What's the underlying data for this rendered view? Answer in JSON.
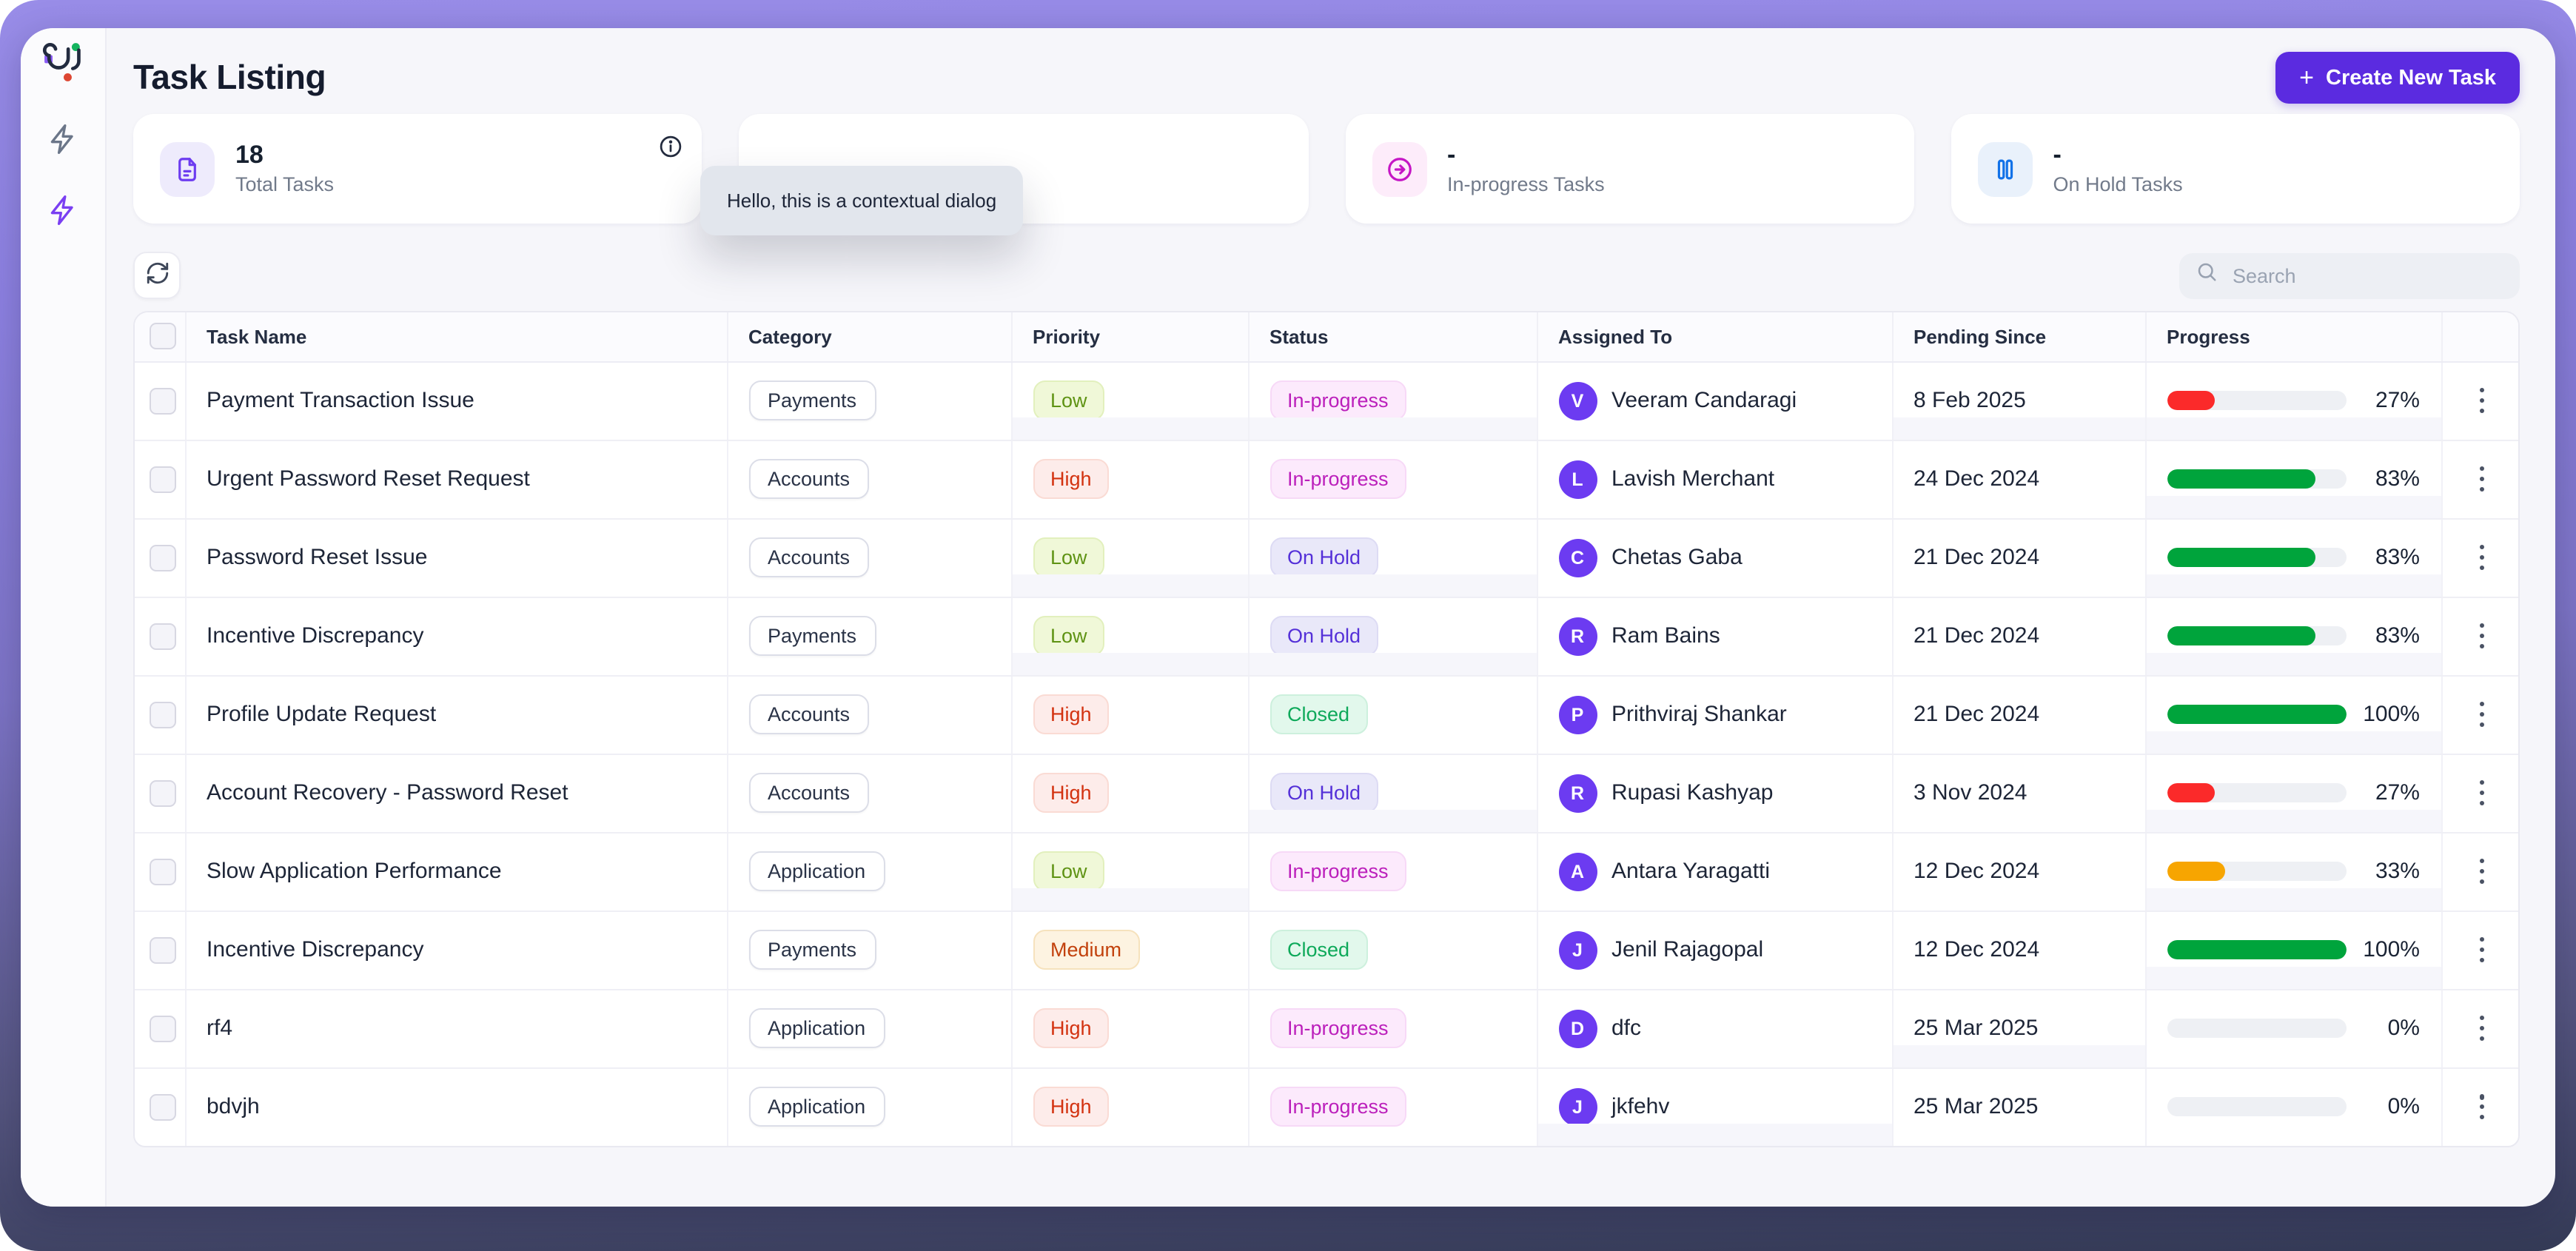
{
  "header": {
    "title": "Task Listing",
    "create_button_label": "Create New Task",
    "plus_icon": "+"
  },
  "sidebar": {
    "logo": "ui-logo",
    "items": [
      {
        "icon": "zap-icon",
        "state": "inactive"
      },
      {
        "icon": "zap-icon",
        "state": "active"
      }
    ]
  },
  "stats_cards": [
    {
      "icon": "document-icon",
      "value": "18",
      "label": "Total Tasks",
      "has_info": true
    },
    {
      "icon": "",
      "value": "",
      "label": "",
      "has_info": false
    },
    {
      "icon": "arrow-right-circle-icon",
      "value": "-",
      "label": "In-progress Tasks",
      "has_info": false
    },
    {
      "icon": "pause-icon",
      "value": "-",
      "label": "On Hold Tasks",
      "has_info": false
    }
  ],
  "tooltip": {
    "text": "Hello, this is a contextual dialog"
  },
  "toolbar": {
    "search_placeholder": "Search"
  },
  "table": {
    "columns": [
      "Task Name",
      "Category",
      "Priority",
      "Status",
      "Assigned To",
      "Pending Since",
      "Progress"
    ],
    "rows": [
      {
        "task": "Payment Transaction Issue",
        "category": "Payments",
        "priority": "Low",
        "status": "In-progress",
        "initial": "V",
        "assignee": "Veeram Candaragi",
        "pending_since": "8 Feb 2025",
        "progress": 27,
        "progress_label": "27%",
        "bar_color": "red"
      },
      {
        "task": "Urgent Password Reset Request",
        "category": "Accounts",
        "priority": "High",
        "status": "In-progress",
        "initial": "L",
        "assignee": "Lavish Merchant",
        "pending_since": "24 Dec 2024",
        "progress": 83,
        "progress_label": "83%",
        "bar_color": "green"
      },
      {
        "task": "Password Reset Issue",
        "category": "Accounts",
        "priority": "Low",
        "status": "On Hold",
        "initial": "C",
        "assignee": "Chetas Gaba",
        "pending_since": "21 Dec 2024",
        "progress": 83,
        "progress_label": "83%",
        "bar_color": "green"
      },
      {
        "task": "Incentive Discrepancy",
        "category": "Payments",
        "priority": "Low",
        "status": "On Hold",
        "initial": "R",
        "assignee": "Ram Bains",
        "pending_since": "21 Dec 2024",
        "progress": 83,
        "progress_label": "83%",
        "bar_color": "green"
      },
      {
        "task": "Profile Update Request",
        "category": "Accounts",
        "priority": "High",
        "status": "Closed",
        "initial": "P",
        "assignee": "Prithviraj Shankar",
        "pending_since": "21 Dec 2024",
        "progress": 100,
        "progress_label": "100%",
        "bar_color": "green"
      },
      {
        "task": "Account Recovery - Password Reset",
        "category": "Accounts",
        "priority": "High",
        "status": "On Hold",
        "initial": "R",
        "assignee": "Rupasi Kashyap",
        "pending_since": "3 Nov 2024",
        "progress": 27,
        "progress_label": "27%",
        "bar_color": "red"
      },
      {
        "task": "Slow Application Performance",
        "category": "Application",
        "priority": "Low",
        "status": "In-progress",
        "initial": "A",
        "assignee": "Antara Yaragatti",
        "pending_since": "12 Dec 2024",
        "progress": 33,
        "progress_label": "33%",
        "bar_color": "orange"
      },
      {
        "task": "Incentive Discrepancy",
        "category": "Payments",
        "priority": "Medium",
        "status": "Closed",
        "initial": "J",
        "assignee": "Jenil Rajagopal",
        "pending_since": "12 Dec 2024",
        "progress": 100,
        "progress_label": "100%",
        "bar_color": "green"
      },
      {
        "task": "rf4",
        "category": "Application",
        "priority": "High",
        "status": "In-progress",
        "initial": "D",
        "assignee": "dfc",
        "pending_since": "25 Mar 2025",
        "progress": 0,
        "progress_label": "0%",
        "bar_color": "gray"
      },
      {
        "task": "bdvjh",
        "category": "Application",
        "priority": "High",
        "status": "In-progress",
        "initial": "J",
        "assignee": "jkfehv",
        "pending_since": "25 Mar 2025",
        "progress": 0,
        "progress_label": "0%",
        "bar_color": "gray"
      }
    ]
  },
  "colors": {
    "accent": "#5b2be0",
    "frame_gradient_top": "#998de8",
    "frame_gradient_bottom": "#343a56",
    "progress_red": "#fb2a2a",
    "progress_green": "#00a43c",
    "progress_orange": "#f7a501",
    "priority_low_text": "#5f9314",
    "priority_medium_text": "#c2410c",
    "priority_high_text": "#d33210",
    "status_in_progress_text": "#bb1fbb",
    "status_on_hold_text": "#5430d8",
    "status_closed_text": "#0ea95a",
    "avatar_bg": "#6c3bf1"
  }
}
